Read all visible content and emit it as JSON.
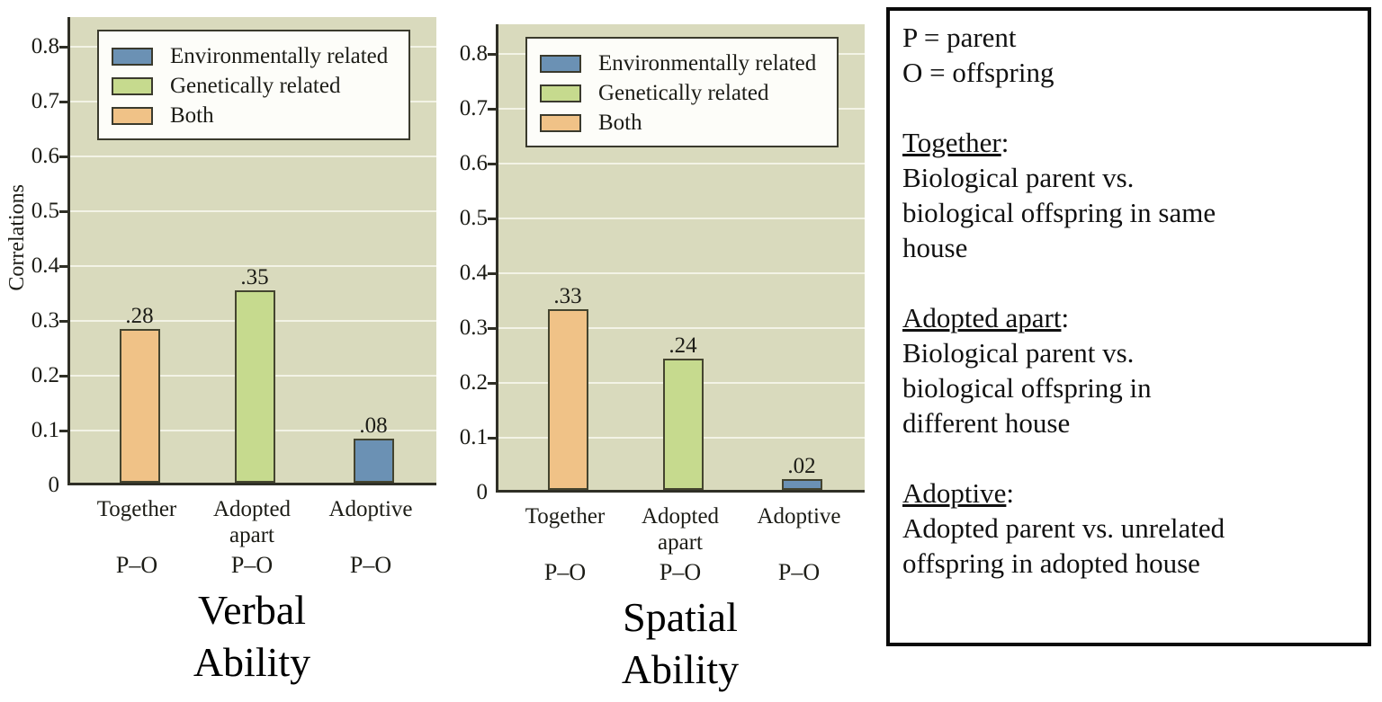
{
  "palette": {
    "environmental": "#6b91b4",
    "genetic": "#c6da8e",
    "both": "#f0c287",
    "plot_bg": "#d9dabd",
    "grid": "#f3f3e6",
    "axis": "#2f2f26",
    "bar_border": "#44442f",
    "legend_bg": "#fdfdf9",
    "legend_border": "#3a3a2d",
    "panel_border": "#0a0a0a"
  },
  "legend_items": [
    {
      "label": "Environmentally related",
      "key": "environmental"
    },
    {
      "label": "Genetically related",
      "key": "genetic"
    },
    {
      "label": "Both",
      "key": "both"
    }
  ],
  "chart_data": [
    {
      "type": "bar",
      "title": "Verbal Ability",
      "title_lines": [
        "Verbal",
        "Ability"
      ],
      "ylabel": "Correlations",
      "ylim": [
        0,
        0.85
      ],
      "yticks": [
        "0",
        "0.1",
        "0.2",
        "0.3",
        "0.4",
        "0.5",
        "0.6",
        "0.7",
        "0.8"
      ],
      "grid": true,
      "legend": [
        "Environmentally related",
        "Genetically related",
        "Both"
      ],
      "legend_position": "top-left",
      "categories": [
        "Together",
        "Adopted apart",
        "Adoptive"
      ],
      "category_lines": [
        [
          "Together"
        ],
        [
          "Adopted",
          "apart"
        ],
        [
          "Adoptive"
        ]
      ],
      "x_sublabels": [
        "P–O",
        "P–O",
        "P–O"
      ],
      "values": [
        0.28,
        0.35,
        0.08
      ],
      "data_labels": [
        ".28",
        ".35",
        ".08"
      ],
      "series_keys": [
        "both",
        "genetic",
        "environmental"
      ]
    },
    {
      "type": "bar",
      "title": "Spatial Ability",
      "title_lines": [
        "Spatial",
        "Ability"
      ],
      "ylabel": "",
      "ylim": [
        0,
        0.85
      ],
      "yticks": [
        "0",
        "0.1",
        "0.2",
        "0.3",
        "0.4",
        "0.5",
        "0.6",
        "0.7",
        "0.8"
      ],
      "grid": true,
      "legend": [
        "Environmentally related",
        "Genetically related",
        "Both"
      ],
      "legend_position": "top-left",
      "categories": [
        "Together",
        "Adopted apart",
        "Adoptive"
      ],
      "category_lines": [
        [
          "Together"
        ],
        [
          "Adopted",
          "apart"
        ],
        [
          "Adoptive"
        ]
      ],
      "x_sublabels": [
        "P–O",
        "P–O",
        "P–O"
      ],
      "values": [
        0.33,
        0.24,
        0.02
      ],
      "data_labels": [
        ".33",
        ".24",
        ".02"
      ],
      "series_keys": [
        "both",
        "genetic",
        "environmental"
      ]
    }
  ],
  "panel": {
    "lines": [
      {
        "term": "",
        "text": "P = parent"
      },
      {
        "term": "",
        "text": "O = offspring"
      },
      {
        "term": "",
        "text": ""
      },
      {
        "term": "Together",
        "text": ":"
      },
      {
        "term": "",
        "text": "Biological parent vs."
      },
      {
        "term": "",
        "text": "biological offspring in same"
      },
      {
        "term": "",
        "text": "house"
      },
      {
        "term": "",
        "text": ""
      },
      {
        "term": "Adopted apart",
        "text": ":"
      },
      {
        "term": "",
        "text": "Biological parent vs."
      },
      {
        "term": "",
        "text": "biological offspring in"
      },
      {
        "term": "",
        "text": "different house"
      },
      {
        "term": "",
        "text": ""
      },
      {
        "term": "Adoptive",
        "text": ":"
      },
      {
        "term": "",
        "text": "Adopted parent vs. unrelated"
      },
      {
        "term": "",
        "text": "offspring in adopted house"
      }
    ]
  }
}
